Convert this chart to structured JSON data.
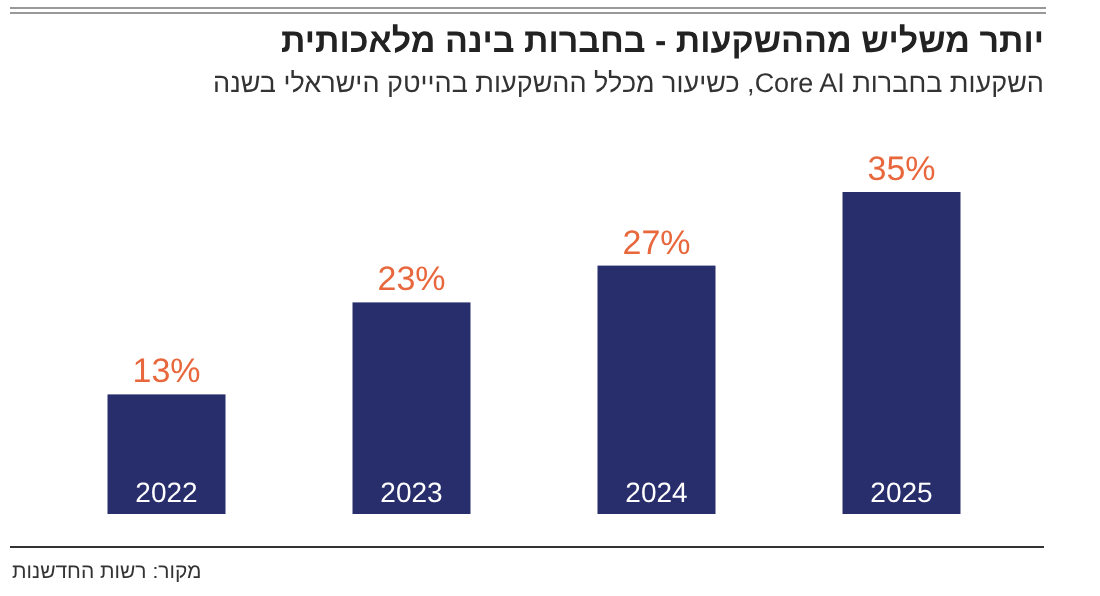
{
  "chart_data": {
    "type": "bar",
    "title": "יותר משליש מההשקעות - בחברות בינה מלאכותית",
    "subtitle": "השקעות בחברות Core AI, כשיעור מכלל ההשקעות בהייטק הישראלי בשנה",
    "categories": [
      "2022",
      "2023",
      "2024",
      "2025"
    ],
    "values": [
      13,
      23,
      27,
      35
    ],
    "color": "#282e6c",
    "value_labels": [
      "13%",
      "23%",
      "27%",
      "35%"
    ],
    "annotations": [
      "מקור: רשות החדשנות"
    ]
  }
}
